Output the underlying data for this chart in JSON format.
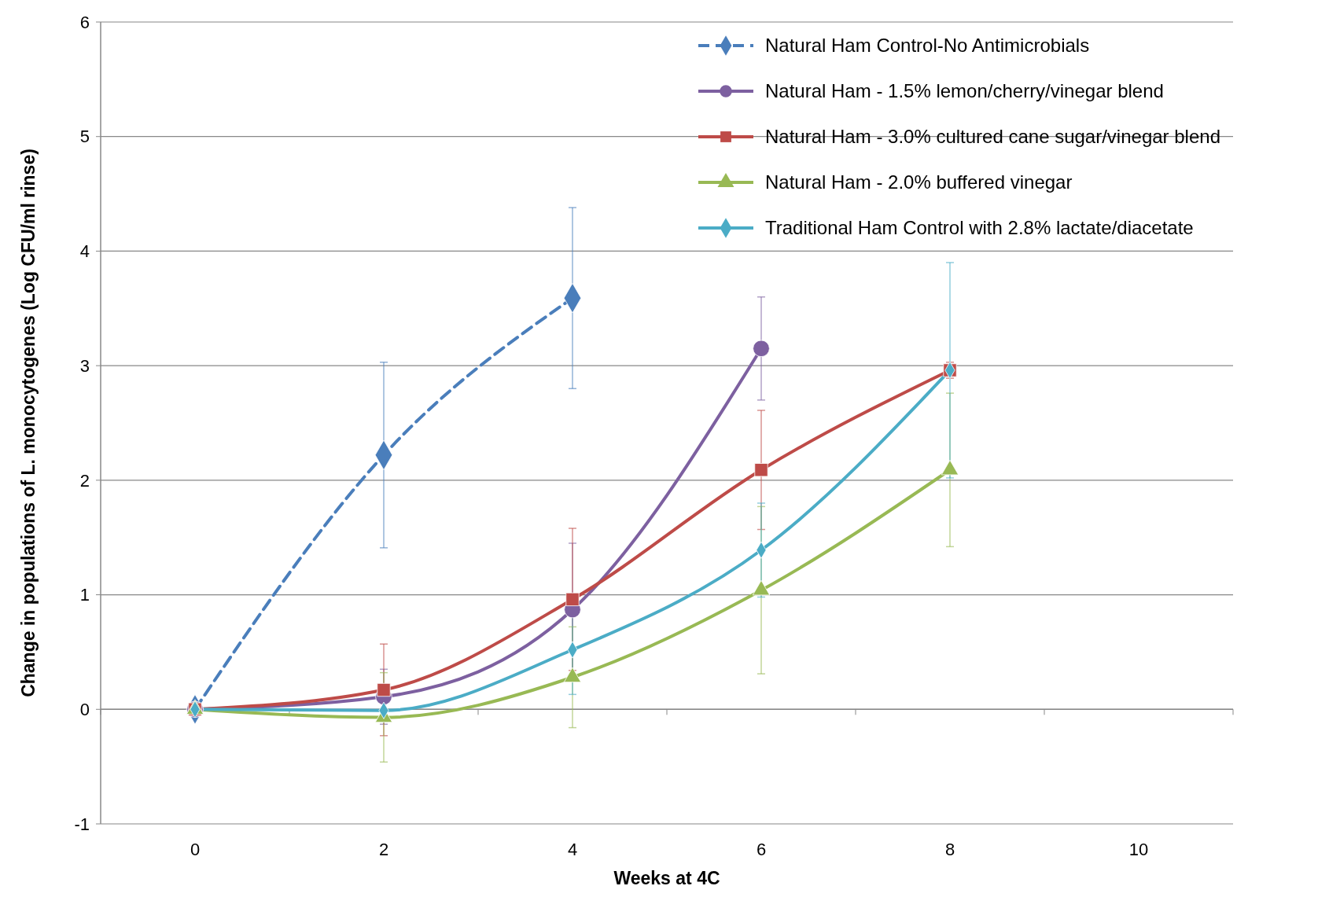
{
  "chart_data": {
    "type": "line",
    "xlabel": "Weeks at 4C",
    "ylabel": "Change in populations of L. monocytogenes (Log CFU/ml rinse)",
    "x": [
      0,
      2,
      4,
      6,
      8
    ],
    "xlim": [
      -1,
      11
    ],
    "xticks": [
      0,
      2,
      4,
      6,
      8,
      10
    ],
    "ylim": [
      -1,
      6
    ],
    "yticks": [
      -1,
      0,
      1,
      2,
      3,
      4,
      5,
      6
    ],
    "grid": "y",
    "legend": "top right",
    "series": [
      {
        "name": "Natural Ham Control-No Antimicrobials",
        "color": "#4a7ebb",
        "marker": "diamond",
        "line_style": "dashed",
        "values": [
          0,
          2.22,
          3.59,
          null,
          null
        ],
        "errors": [
          null,
          0.81,
          0.79,
          null,
          null
        ]
      },
      {
        "name": "Natural Ham - 1.5% lemon/cherry/vinegar blend",
        "color": "#7d60a0",
        "marker": "circle",
        "line_style": "solid",
        "values": [
          0,
          0.11,
          0.87,
          3.15,
          null
        ],
        "errors": [
          null,
          0.24,
          0.58,
          0.45,
          null
        ]
      },
      {
        "name": "Natural Ham -  3.0% cultured cane sugar/vinegar blend",
        "color": "#be4b48",
        "marker": "square",
        "line_style": "solid",
        "values": [
          0,
          0.17,
          0.96,
          2.09,
          2.96
        ],
        "errors": [
          null,
          0.4,
          0.62,
          0.52,
          0.07
        ]
      },
      {
        "name": "Natural Ham - 2.0% buffered vinegar",
        "color": "#98b954",
        "marker": "triangle",
        "line_style": "solid",
        "values": [
          0,
          -0.07,
          0.28,
          1.04,
          2.09
        ],
        "errors": [
          null,
          0.39,
          0.44,
          0.73,
          0.67
        ]
      },
      {
        "name": "Traditional Ham Control with 2.8% lactate/diacetate",
        "color": "#4bacc6",
        "marker": "diamond",
        "line_style": "solid",
        "values": [
          0,
          -0.01,
          0.52,
          1.39,
          2.96
        ],
        "errors": [
          null,
          0.1,
          0.39,
          0.41,
          0.94
        ]
      }
    ]
  }
}
